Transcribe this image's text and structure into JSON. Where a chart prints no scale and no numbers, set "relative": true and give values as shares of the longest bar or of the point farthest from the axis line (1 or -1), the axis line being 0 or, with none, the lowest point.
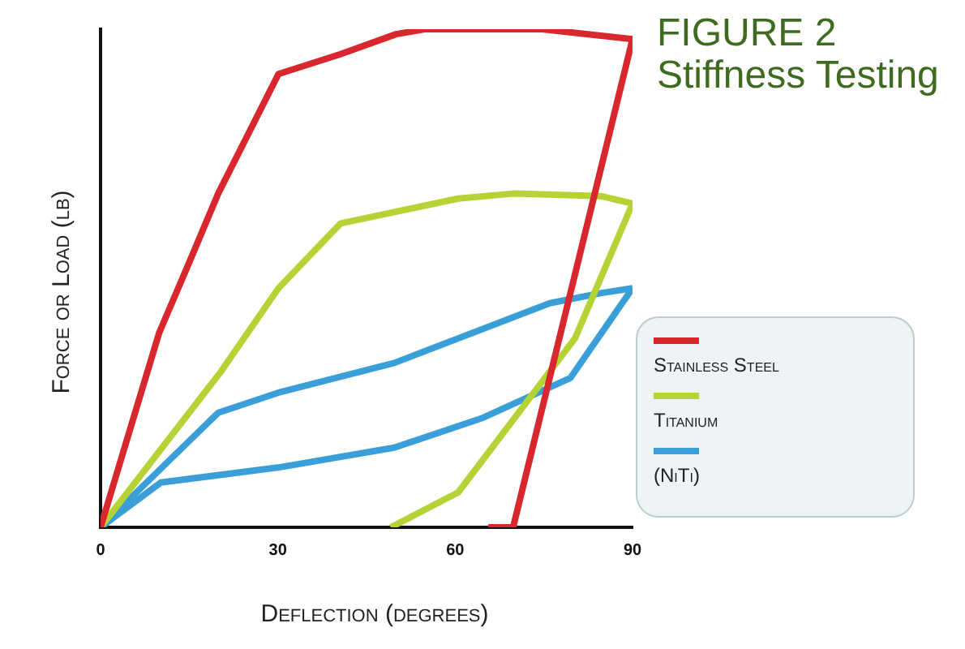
{
  "chart_data": {
    "type": "line",
    "title": "FIGURE 2",
    "subtitle": "Stiffness Testing",
    "xlabel": "Deflection (degrees)",
    "ylabel": "Force or Load (lb)",
    "relative": true,
    "xlim": [
      0,
      90
    ],
    "xticks": [
      0,
      30,
      60,
      90
    ],
    "grid": false,
    "legend": "right",
    "marker": "none",
    "line_style": "solid",
    "series": [
      {
        "name": "Stainless Steel",
        "color": "#d9272e",
        "x": [
          0,
          9.9,
          15.3,
          19.9,
          30.1,
          40.6,
          50,
          54.8,
          74.7,
          90
        ],
        "values": [
          0,
          0.39,
          0.54,
          0.67,
          0.91,
          0.95,
          0.99,
          1,
          1,
          0.98
        ]
      },
      {
        "color": "#d9272e",
        "x": [
          65.6,
          69.8,
          90
        ],
        "values": [
          0,
          0,
          0.98
        ]
      },
      {
        "name": "Titanium",
        "color": "#b5d334",
        "x": [
          0,
          20.2,
          30.1,
          40.6,
          60.5,
          69.8,
          84.6,
          90
        ],
        "values": [
          0,
          0.31,
          0.48,
          0.61,
          0.66,
          0.67,
          0.665,
          0.65
        ]
      },
      {
        "color": "#b5d334",
        "x": [
          49.1,
          60.5,
          80.3,
          90
        ],
        "values": [
          0,
          0.07,
          0.38,
          0.65
        ]
      },
      {
        "name": "(NiTi)",
        "color": "#3a9fd8",
        "x": [
          0,
          19.9,
          30,
          49.7,
          76,
          84.6,
          90
        ],
        "values": [
          0,
          0.23,
          0.27,
          0.33,
          0.45,
          0.47,
          0.48
        ]
      },
      {
        "color": "#3a9fd8",
        "x": [
          0,
          10.2,
          30,
          49.7,
          64.7,
          79.5,
          90
        ],
        "values": [
          0,
          0.09,
          0.12,
          0.16,
          0.22,
          0.3,
          0.48
        ]
      }
    ]
  }
}
